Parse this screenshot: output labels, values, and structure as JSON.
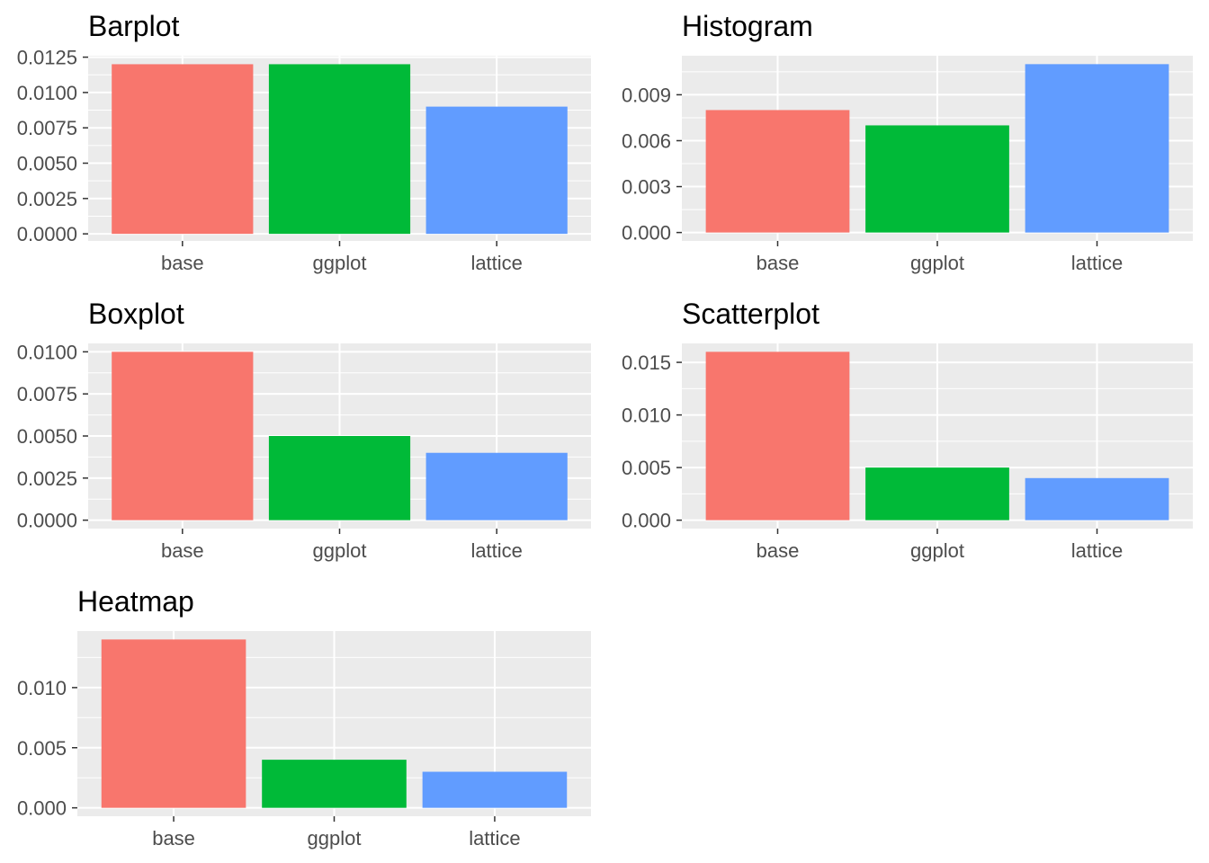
{
  "colors": {
    "panel_background": "#EBEBEB",
    "grid": "#FFFFFF",
    "tick": "#333333",
    "tick_label": "#4D4D4D",
    "series": [
      "#F8766D",
      "#00BA38",
      "#619CFF"
    ]
  },
  "chart_data": [
    {
      "type": "bar",
      "title": "Barplot",
      "categories": [
        "base",
        "ggplot",
        "lattice"
      ],
      "values": [
        0.012,
        0.012,
        0.009
      ],
      "ylim": [
        -0.0005,
        0.0126
      ],
      "yticks": [
        0,
        0.0025,
        0.005,
        0.0075,
        0.01,
        0.0125
      ],
      "ytick_labels": [
        "0.0000",
        "0.0025",
        "0.0050",
        "0.0075",
        "0.0100",
        "0.0125"
      ],
      "grid": true
    },
    {
      "type": "bar",
      "title": "Histogram",
      "categories": [
        "base",
        "ggplot",
        "lattice"
      ],
      "values": [
        0.008,
        0.007,
        0.011
      ],
      "ylim": [
        -0.00055,
        0.01155
      ],
      "yticks": [
        0,
        0.003,
        0.006,
        0.009
      ],
      "ytick_labels": [
        "0.000",
        "0.003",
        "0.006",
        "0.009"
      ],
      "grid": true
    },
    {
      "type": "bar",
      "title": "Boxplot",
      "categories": [
        "base",
        "ggplot",
        "lattice"
      ],
      "values": [
        0.01,
        0.005,
        0.004
      ],
      "ylim": [
        -0.0005,
        0.0105
      ],
      "yticks": [
        0,
        0.0025,
        0.005,
        0.0075,
        0.01
      ],
      "ytick_labels": [
        "0.0000",
        "0.0025",
        "0.0050",
        "0.0075",
        "0.0100"
      ],
      "grid": true
    },
    {
      "type": "bar",
      "title": "Scatterplot",
      "categories": [
        "base",
        "ggplot",
        "lattice"
      ],
      "values": [
        0.016,
        0.005,
        0.004
      ],
      "ylim": [
        -0.0008,
        0.0168
      ],
      "yticks": [
        0,
        0.005,
        0.01,
        0.015
      ],
      "ytick_labels": [
        "0.000",
        "0.005",
        "0.010",
        "0.015"
      ],
      "grid": true
    },
    {
      "type": "bar",
      "title": "Heatmap",
      "categories": [
        "base",
        "ggplot",
        "lattice"
      ],
      "values": [
        0.014,
        0.004,
        0.003
      ],
      "ylim": [
        -0.0007,
        0.0147
      ],
      "yticks": [
        0,
        0.005,
        0.01
      ],
      "ytick_labels": [
        "0.000",
        "0.005",
        "0.010"
      ],
      "grid": true
    }
  ]
}
